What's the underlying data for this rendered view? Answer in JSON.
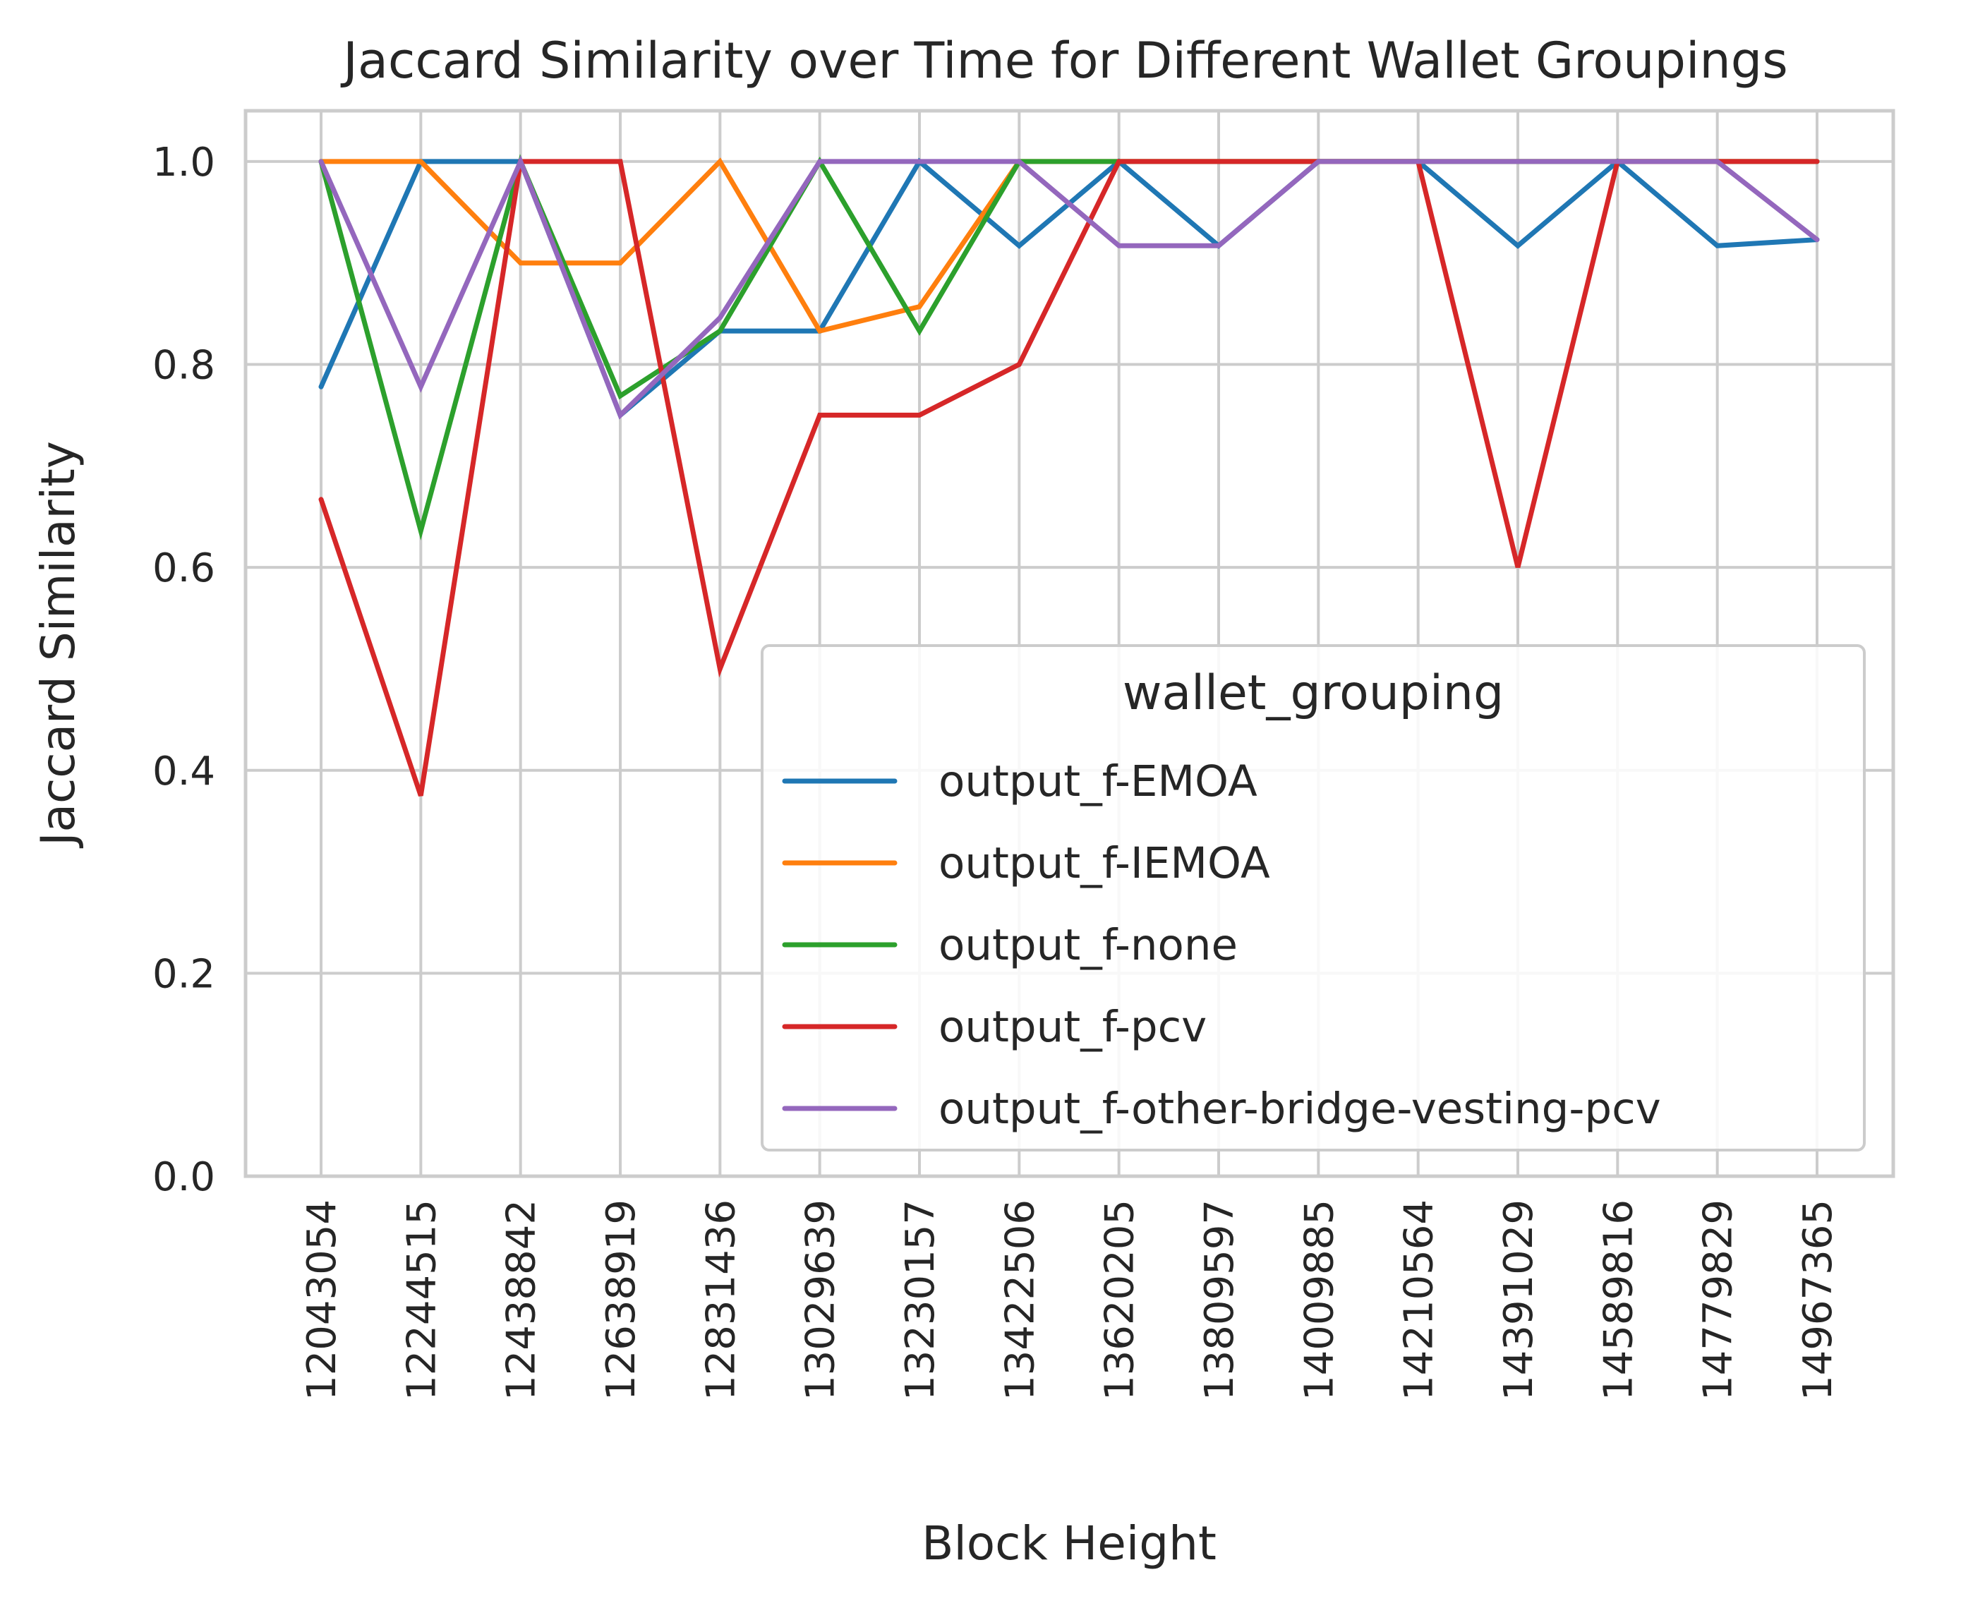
{
  "chart_data": {
    "type": "line",
    "title": "Jaccard Similarity over Time for Different Wallet Groupings",
    "xlabel": "Block Height",
    "ylabel": "Jaccard Similarity",
    "ylim": [
      0,
      1.05
    ],
    "y_ticks": [
      "0.0",
      "0.2",
      "0.4",
      "0.6",
      "0.8",
      "1.0"
    ],
    "grid": true,
    "legend_title": "wallet_grouping",
    "legend_position": "lower-right",
    "x": [
      "12043054",
      "12244515",
      "12438842",
      "12638919",
      "12831436",
      "13029639",
      "13230157",
      "13422506",
      "13620205",
      "13809597",
      "14009885",
      "14210564",
      "14391029",
      "14589816",
      "14779829",
      "14967365"
    ],
    "series": [
      {
        "name": "output_f-EMOA",
        "color": "#1f77b4",
        "values": [
          0.778,
          1.0,
          1.0,
          0.75,
          0.833,
          0.833,
          1.0,
          0.917,
          1.0,
          0.917,
          1.0,
          1.0,
          0.917,
          1.0,
          0.917,
          0.923
        ]
      },
      {
        "name": "output_f-IEMOA",
        "color": "#ff7f0e",
        "values": [
          1.0,
          1.0,
          0.9,
          0.9,
          1.0,
          0.833,
          0.857,
          1.0,
          1.0,
          1.0,
          1.0,
          1.0,
          1.0,
          1.0,
          1.0,
          1.0
        ]
      },
      {
        "name": "output_f-none",
        "color": "#2ca02c",
        "values": [
          1.0,
          0.636,
          1.0,
          0.769,
          0.833,
          1.0,
          0.833,
          1.0,
          1.0,
          1.0,
          1.0,
          1.0,
          1.0,
          1.0,
          1.0,
          1.0
        ]
      },
      {
        "name": "output_f-pcv",
        "color": "#d62728",
        "values": [
          0.667,
          0.375,
          1.0,
          1.0,
          0.5,
          0.75,
          0.75,
          0.8,
          1.0,
          1.0,
          1.0,
          1.0,
          0.6,
          1.0,
          1.0,
          1.0
        ]
      },
      {
        "name": "output_f-other-bridge-vesting-pcv",
        "color": "#9467bd",
        "values": [
          1.0,
          0.778,
          1.0,
          0.75,
          0.846,
          1.0,
          1.0,
          1.0,
          0.917,
          0.917,
          1.0,
          1.0,
          1.0,
          1.0,
          1.0,
          0.923
        ]
      }
    ]
  }
}
